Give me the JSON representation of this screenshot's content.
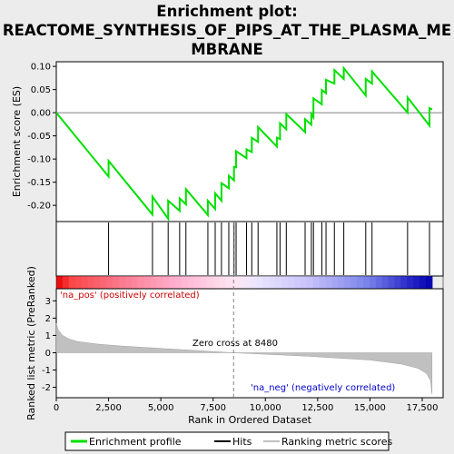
{
  "chart_data": {
    "type": "line",
    "title_lines": [
      "Enrichment plot:",
      "REACTOME_SYNTHESIS_OF_PIPS_AT_THE_PLASMA_ME",
      "MBRANE"
    ],
    "top_panel": {
      "ylabel": "Enrichment score (ES)",
      "ylim": [
        -0.235,
        0.11
      ],
      "yticks": [
        "0.10",
        "0.05",
        "0.00",
        "-0.05",
        "-0.10",
        "-0.15",
        "-0.20"
      ],
      "ytick_values": [
        0.1,
        0.05,
        0.0,
        -0.05,
        -0.1,
        -0.15,
        -0.2
      ],
      "series": [
        {
          "name": "Enrichment profile",
          "color": "#00e000",
          "x": [
            0,
            2500,
            2500,
            4600,
            4600,
            5350,
            5350,
            5900,
            5900,
            6200,
            6200,
            7250,
            7250,
            7600,
            7600,
            7900,
            7900,
            8250,
            8250,
            8500,
            8500,
            8600,
            8600,
            9100,
            9100,
            9350,
            9350,
            9650,
            9650,
            10550,
            10550,
            10700,
            10700,
            11000,
            11000,
            11900,
            11900,
            12200,
            12200,
            12300,
            12300,
            12700,
            12700,
            12900,
            12900,
            13300,
            13300,
            13750,
            13750,
            14800,
            14800,
            15100,
            15100,
            16800,
            16800,
            17850,
            17850,
            17970
          ],
          "y": [
            0.0,
            -0.138,
            -0.104,
            -0.22,
            -0.181,
            -0.229,
            -0.19,
            -0.212,
            -0.185,
            -0.198,
            -0.165,
            -0.221,
            -0.19,
            -0.208,
            -0.174,
            -0.19,
            -0.152,
            -0.163,
            -0.136,
            -0.146,
            -0.117,
            -0.118,
            -0.083,
            -0.098,
            -0.079,
            -0.085,
            -0.054,
            -0.063,
            -0.031,
            -0.073,
            -0.054,
            -0.057,
            -0.023,
            -0.036,
            -0.003,
            -0.042,
            -0.014,
            -0.026,
            -0.003,
            -0.01,
            0.031,
            0.018,
            0.049,
            0.042,
            0.071,
            0.063,
            0.092,
            0.073,
            0.096,
            0.037,
            0.073,
            0.063,
            0.089,
            0.0,
            0.033,
            -0.028,
            0.01,
            0.007
          ]
        }
      ]
    },
    "hits_panel": {
      "label": "Hits",
      "hit_ranks": [
        2500,
        4600,
        5350,
        5900,
        6200,
        7250,
        7600,
        7900,
        8250,
        8500,
        8600,
        9100,
        9350,
        9650,
        10550,
        10700,
        11000,
        11900,
        12200,
        12300,
        12700,
        12900,
        13300,
        13750,
        14800,
        15100,
        16800,
        17850
      ]
    },
    "bottom_panel": {
      "ylabel": "Ranked list metric (PreRanked)",
      "xlabel": "Rank in Ordered Dataset",
      "xlim": [
        0,
        18500
      ],
      "xticks": [
        "0",
        "2,500",
        "5,000",
        "7,500",
        "10,000",
        "12,500",
        "15,000",
        "17,500"
      ],
      "xtick_values": [
        0,
        2500,
        5000,
        7500,
        10000,
        12500,
        15000,
        17500
      ],
      "ylim": [
        -2.6,
        3.7
      ],
      "yticks": [
        "3",
        "2",
        "1",
        "0",
        "-1",
        "-2"
      ],
      "ytick_values": [
        3,
        2,
        1,
        0,
        -1,
        -2
      ],
      "metric_x": [
        0,
        100,
        300,
        600,
        1000,
        2000,
        3000,
        5000,
        8480,
        12000,
        15000,
        16500,
        17300,
        17700,
        17900,
        17970
      ],
      "metric_y": [
        1.7,
        1.3,
        1.0,
        0.8,
        0.65,
        0.5,
        0.4,
        0.25,
        0.0,
        -0.2,
        -0.42,
        -0.65,
        -0.9,
        -1.2,
        -1.6,
        -2.4
      ],
      "zero_cross_rank": 8480,
      "zero_cross_label": "Zero cross at 8480",
      "pos_label": "'na_pos' (positively correlated)",
      "neg_label": "'na_neg' (negatively correlated)"
    },
    "n_genes": 17970,
    "colors": {
      "profile": "#00e000",
      "metric_fill": "#c0c0c0",
      "pos_label": "#cc0000",
      "neg_label": "#0000cc",
      "bar_left": "#e80000",
      "bar_right": "#0000b0"
    },
    "legend": [
      {
        "name": "Enrichment profile",
        "kind": "line-green"
      },
      {
        "name": "Hits",
        "kind": "line-black"
      },
      {
        "name": "Ranking metric scores",
        "kind": "line-gray"
      }
    ]
  }
}
